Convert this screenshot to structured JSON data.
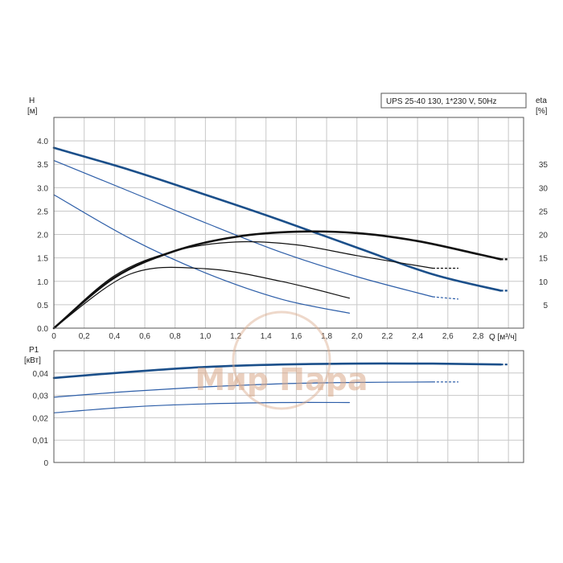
{
  "chart_data": [
    {
      "type": "line",
      "title": "UPS 25-40 130, 1*230 V, 50Hz",
      "ylabel": "H",
      "yunit": "[м]",
      "y2label": "eta",
      "y2unit": "[%]",
      "xlabel": "Q [м³/ч]",
      "xlim": [
        0,
        3.1
      ],
      "ylim": [
        0,
        4.5
      ],
      "y2lim": [
        0,
        45
      ],
      "xticks": [
        "0",
        "0,2",
        "0,4",
        "0,6",
        "0,8",
        "1,0",
        "1,2",
        "1,4",
        "1,6",
        "1,8",
        "2,0",
        "2,2",
        "2,4",
        "2,6",
        "2,8"
      ],
      "yticks": [
        "0.0",
        "0.5",
        "1.0",
        "1.5",
        "2.0",
        "2.5",
        "3.0",
        "3.5",
        "4.0"
      ],
      "y2ticks": [
        "5",
        "10",
        "15",
        "20",
        "25",
        "30",
        "35"
      ],
      "grid": true,
      "series": [
        {
          "kind": "head",
          "color": "#1b4f8a",
          "emphasis": true,
          "x": [
            0,
            0.5,
            1.0,
            1.5,
            2.0,
            2.5,
            2.95
          ],
          "y": [
            3.85,
            3.38,
            2.85,
            2.3,
            1.72,
            1.15,
            0.8
          ],
          "dashed_x": [
            2.95,
            3.0
          ],
          "dashed_y": [
            0.8,
            0.8
          ]
        },
        {
          "kind": "head",
          "color": "#2d5ea8",
          "emphasis": false,
          "x": [
            0,
            0.5,
            1.0,
            1.5,
            2.0,
            2.5
          ],
          "y": [
            3.58,
            2.92,
            2.25,
            1.62,
            1.1,
            0.67
          ],
          "dashed_x": [
            2.5,
            2.67
          ],
          "dashed_y": [
            0.67,
            0.62
          ]
        },
        {
          "kind": "head",
          "color": "#2d5ea8",
          "emphasis": false,
          "x": [
            0,
            0.5,
            1.0,
            1.5,
            1.95
          ],
          "y": [
            2.85,
            1.92,
            1.18,
            0.62,
            0.32
          ]
        },
        {
          "kind": "eta",
          "color": "#111111",
          "emphasis": true,
          "x": [
            0,
            0.4,
            0.8,
            1.2,
            1.6,
            2.0,
            2.4,
            2.8,
            2.95
          ],
          "y": [
            0,
            10.8,
            16.5,
            19.5,
            20.6,
            20.3,
            18.6,
            15.8,
            14.7
          ],
          "dashed_x": [
            2.95,
            3.0
          ],
          "dashed_y": [
            14.7,
            14.7
          ]
        },
        {
          "kind": "eta",
          "color": "#111111",
          "emphasis": false,
          "x": [
            0,
            0.4,
            0.8,
            1.2,
            1.6,
            2.0,
            2.5
          ],
          "y": [
            0,
            11.2,
            16.5,
            18.4,
            17.8,
            15.5,
            12.8
          ],
          "dashed_x": [
            2.5,
            2.67
          ],
          "dashed_y": [
            12.8,
            12.8
          ]
        },
        {
          "kind": "eta",
          "color": "#111111",
          "emphasis": false,
          "x": [
            0,
            0.5,
            1.0,
            1.5,
            1.95
          ],
          "y": [
            0,
            11.5,
            12.7,
            10.0,
            6.4
          ]
        }
      ]
    },
    {
      "type": "line",
      "ylabel": "P1",
      "yunit": "[кВт]",
      "xlim": [
        0,
        3.1
      ],
      "ylim": [
        0,
        0.05
      ],
      "yticks": [
        "0",
        "0,01",
        "0,02",
        "0,03",
        "0,04"
      ],
      "grid": true,
      "series": [
        {
          "color": "#1b4f8a",
          "emphasis": true,
          "x": [
            0,
            0.5,
            1.0,
            1.5,
            2.0,
            2.5,
            2.95
          ],
          "y": [
            0.0378,
            0.0405,
            0.0427,
            0.0438,
            0.0442,
            0.0442,
            0.0438
          ],
          "dashed_x": [
            2.95,
            3.0
          ],
          "dashed_y": [
            0.0438,
            0.0438
          ]
        },
        {
          "color": "#2d5ea8",
          "emphasis": false,
          "x": [
            0,
            0.5,
            1.0,
            1.5,
            2.0,
            2.5
          ],
          "y": [
            0.0292,
            0.0318,
            0.0338,
            0.0352,
            0.0358,
            0.036
          ],
          "dashed_x": [
            2.5,
            2.67
          ],
          "dashed_y": [
            0.036,
            0.036
          ]
        },
        {
          "color": "#2d5ea8",
          "emphasis": false,
          "x": [
            0,
            0.5,
            1.0,
            1.5,
            1.95
          ],
          "y": [
            0.0222,
            0.0248,
            0.0262,
            0.0268,
            0.0268
          ]
        }
      ]
    }
  ],
  "watermark": {
    "text": "Мир Пара",
    "color": "#d9a989"
  }
}
